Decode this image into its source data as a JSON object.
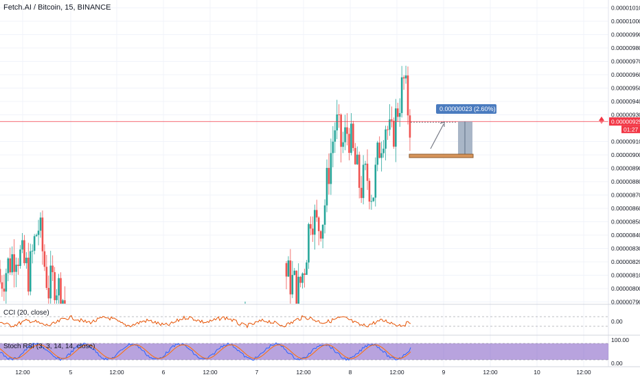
{
  "header": {
    "title": "Fetch.AI / Bitcoin, 15, BINANCE"
  },
  "price_scale": {
    "ticks": [
      "0.00001010",
      "0.00001000",
      "0.00000990",
      "0.00000980",
      "0.00000970",
      "0.00000960",
      "0.00000950",
      "0.00000940",
      "0.00000930",
      "0.00000910",
      "0.00000900",
      "0.00000890",
      "0.00000880",
      "0.00000870",
      "0.00000860",
      "0.00000850",
      "0.00000840",
      "0.00000830",
      "0.00000820",
      "0.00000810",
      "0.00000800",
      "0.00000790"
    ],
    "current_price": "0.00000925",
    "countdown": "01:27",
    "current_color": "#f23645"
  },
  "measure": {
    "label": "0.00000023 (2.60%) 23"
  },
  "time_axis": {
    "labels": [
      "12:00",
      "5",
      "12:00",
      "6",
      "12:00",
      "7",
      "12:00",
      "8",
      "12:00",
      "9",
      "12:00",
      "10",
      "12:00"
    ]
  },
  "cci": {
    "label": "CCI (20, close)",
    "tick": "0.00",
    "color": "#e65100"
  },
  "stoch": {
    "label": "Stoch RSI (3, 3, 14, 14, close)",
    "ticks": [
      "100.00",
      "0.00"
    ],
    "k_color": "#2962ff",
    "d_color": "#ff6d00",
    "band_color": "#7e57c2"
  },
  "chart_data": {
    "type": "candlestick",
    "title": "Fetch.AI / Bitcoin, 15, BINANCE",
    "ylim": [
      7.86e-06,
      1.014e-05
    ],
    "x_labels": [
      "12:00",
      "5",
      "12:00",
      "6",
      "12:00",
      "7",
      "12:00",
      "8",
      "12:00",
      "9",
      "12:00",
      "10",
      "12:00"
    ],
    "series": [
      {
        "name": "price",
        "segments": [
          {
            "from": "4 12:00",
            "to": "5 00:00",
            "path": [
              [
                0,
                8.05e-06
              ],
              [
                0.25,
                8.3e-06
              ],
              [
                0.45,
                8.1e-06
              ],
              [
                0.55,
                8.4e-06
              ],
              [
                0.6,
                8.47e-06
              ],
              [
                0.68,
                8.2e-06
              ],
              [
                0.75,
                8e-06
              ],
              [
                0.85,
                8.07e-06
              ],
              [
                0.95,
                7.95e-06
              ],
              [
                1,
                7.9e-06
              ]
            ]
          },
          {
            "from": "7 10:00",
            "to": "8 21:00",
            "path": [
              [
                0,
                8.1e-06
              ],
              [
                0.05,
                8.05e-06
              ],
              [
                0.1,
                7.98e-06
              ],
              [
                0.15,
                8.2e-06
              ],
              [
                0.2,
                8.6e-06
              ],
              [
                0.25,
                8.45e-06
              ],
              [
                0.3,
                8.55e-06
              ],
              [
                0.35,
                8.95e-06
              ],
              [
                0.4,
                9.25e-06
              ],
              [
                0.45,
                9.05e-06
              ],
              [
                0.5,
                9.2e-06
              ],
              [
                0.55,
                8.95e-06
              ],
              [
                0.6,
                8.75e-06
              ],
              [
                0.65,
                8.85e-06
              ],
              [
                0.7,
                8.7e-06
              ],
              [
                0.75,
                9.05e-06
              ],
              [
                0.8,
                9.25e-06
              ],
              [
                0.85,
                9.1e-06
              ],
              [
                0.9,
                9.35e-06
              ],
              [
                0.95,
                9.55e-06
              ],
              [
                1,
                9.25e-06
              ]
            ]
          }
        ]
      }
    ],
    "annotations": {
      "current_price": 9.25e-06,
      "measure_change": 2.3e-07,
      "measure_percent": 2.6,
      "measure_bars": 23,
      "range_low": 8.99e-06
    },
    "cci_zero": 0.0,
    "stoch_range": [
      0,
      100
    ]
  }
}
